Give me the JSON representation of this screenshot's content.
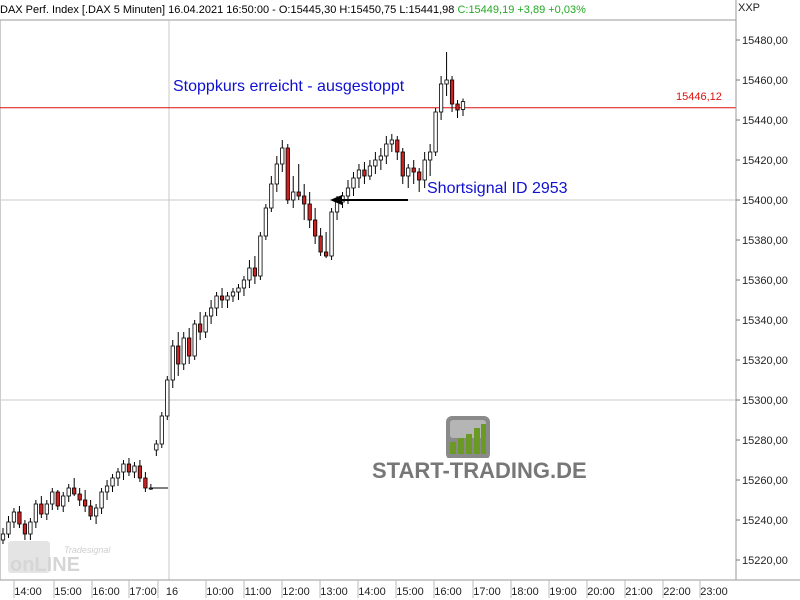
{
  "header": {
    "symbol": "DAX Perf. Index [.DAX  5 Minuten] 16.04.2021 16:50:00 - O:15445,30 H:15450,75 L:15441,98",
    "close": "C:15449,19 +3,89 +0,03%"
  },
  "currency": "XXP",
  "annotations": {
    "stop_text": "Stoppkurs erreicht - ausgestoppt",
    "signal_text": "Shortsignal ID 2953"
  },
  "price_tag": "15446,12",
  "logo": {
    "text": "START-TRADING.DE",
    "watermark": "Tradesignal online"
  },
  "colors": {
    "accent_line": "#dd1111",
    "annotation": "#1010d0",
    "candle_up": "#ffffff",
    "candle_down": "#cc2222",
    "grid": "#c8c8c8"
  },
  "chart_data": {
    "type": "candlestick",
    "ylim": [
      15210,
      15490
    ],
    "y_ticks": [
      "15480,00",
      "15460,00",
      "15440,00",
      "15420,00",
      "15400,00",
      "15380,00",
      "15360,00",
      "15340,00",
      "15320,00",
      "15300,00",
      "15280,00",
      "15260,00",
      "15240,00",
      "15220,00"
    ],
    "x_labels": [
      "14:00",
      "15:00",
      "16:00",
      "17:00",
      "16",
      "10:00",
      "11:00",
      "12:00",
      "13:00",
      "14:00",
      "15:00",
      "16:00",
      "17:00",
      "18:00",
      "19:00",
      "20:00",
      "21:00",
      "22:00",
      "23:00"
    ],
    "hlines": {
      "stop_level": 15446.12,
      "signal_level": 15400
    },
    "candles": [
      {
        "o": 15230,
        "h": 15236,
        "l": 15228,
        "c": 15233
      },
      {
        "o": 15233,
        "h": 15242,
        "l": 15231,
        "c": 15239
      },
      {
        "o": 15239,
        "h": 15246,
        "l": 15236,
        "c": 15244
      },
      {
        "o": 15244,
        "h": 15247,
        "l": 15236,
        "c": 15238
      },
      {
        "o": 15238,
        "h": 15240,
        "l": 15230,
        "c": 15233
      },
      {
        "o": 15233,
        "h": 15241,
        "l": 15230,
        "c": 15239
      },
      {
        "o": 15239,
        "h": 15250,
        "l": 15236,
        "c": 15248
      },
      {
        "o": 15248,
        "h": 15252,
        "l": 15241,
        "c": 15243
      },
      {
        "o": 15243,
        "h": 15250,
        "l": 15240,
        "c": 15248
      },
      {
        "o": 15248,
        "h": 15256,
        "l": 15245,
        "c": 15254
      },
      {
        "o": 15254,
        "h": 15255,
        "l": 15245,
        "c": 15247
      },
      {
        "o": 15247,
        "h": 15254,
        "l": 15244,
        "c": 15252
      },
      {
        "o": 15252,
        "h": 15258,
        "l": 15249,
        "c": 15256
      },
      {
        "o": 15256,
        "h": 15261,
        "l": 15252,
        "c": 15253
      },
      {
        "o": 15253,
        "h": 15256,
        "l": 15247,
        "c": 15250
      },
      {
        "o": 15250,
        "h": 15255,
        "l": 15244,
        "c": 15247
      },
      {
        "o": 15247,
        "h": 15250,
        "l": 15240,
        "c": 15242
      },
      {
        "o": 15242,
        "h": 15248,
        "l": 15238,
        "c": 15246
      },
      {
        "o": 15246,
        "h": 15256,
        "l": 15243,
        "c": 15254
      },
      {
        "o": 15254,
        "h": 15260,
        "l": 15250,
        "c": 15257
      },
      {
        "o": 15257,
        "h": 15263,
        "l": 15254,
        "c": 15261
      },
      {
        "o": 15261,
        "h": 15266,
        "l": 15257,
        "c": 15264
      },
      {
        "o": 15264,
        "h": 15270,
        "l": 15260,
        "c": 15268
      },
      {
        "o": 15268,
        "h": 15271,
        "l": 15262,
        "c": 15264
      },
      {
        "o": 15264,
        "h": 15269,
        "l": 15261,
        "c": 15267
      },
      {
        "o": 15267,
        "h": 15270,
        "l": 15259,
        "c": 15261
      },
      {
        "o": 15261,
        "h": 15264,
        "l": 15254,
        "c": 15256
      },
      {
        "o": 15256,
        "h": 15258,
        "l": 15255,
        "c": 15256
      },
      {
        "o": 15275,
        "h": 15280,
        "l": 15272,
        "c": 15278
      },
      {
        "o": 15278,
        "h": 15294,
        "l": 15276,
        "c": 15292
      },
      {
        "o": 15292,
        "h": 15312,
        "l": 15290,
        "c": 15310
      },
      {
        "o": 15310,
        "h": 15330,
        "l": 15306,
        "c": 15327
      },
      {
        "o": 15327,
        "h": 15334,
        "l": 15312,
        "c": 15318
      },
      {
        "o": 15318,
        "h": 15334,
        "l": 15315,
        "c": 15331
      },
      {
        "o": 15331,
        "h": 15336,
        "l": 15318,
        "c": 15322
      },
      {
        "o": 15322,
        "h": 15340,
        "l": 15320,
        "c": 15338
      },
      {
        "o": 15338,
        "h": 15344,
        "l": 15330,
        "c": 15334
      },
      {
        "o": 15334,
        "h": 15344,
        "l": 15331,
        "c": 15342
      },
      {
        "o": 15342,
        "h": 15350,
        "l": 15338,
        "c": 15346
      },
      {
        "o": 15346,
        "h": 15354,
        "l": 15342,
        "c": 15352
      },
      {
        "o": 15352,
        "h": 15356,
        "l": 15346,
        "c": 15350
      },
      {
        "o": 15350,
        "h": 15354,
        "l": 15346,
        "c": 15352
      },
      {
        "o": 15352,
        "h": 15356,
        "l": 15349,
        "c": 15354
      },
      {
        "o": 15354,
        "h": 15358,
        "l": 15350,
        "c": 15356
      },
      {
        "o": 15356,
        "h": 15362,
        "l": 15352,
        "c": 15360
      },
      {
        "o": 15360,
        "h": 15370,
        "l": 15356,
        "c": 15366
      },
      {
        "o": 15366,
        "h": 15372,
        "l": 15358,
        "c": 15362
      },
      {
        "o": 15362,
        "h": 15384,
        "l": 15360,
        "c": 15382
      },
      {
        "o": 15382,
        "h": 15398,
        "l": 15380,
        "c": 15396
      },
      {
        "o": 15396,
        "h": 15412,
        "l": 15394,
        "c": 15408
      },
      {
        "o": 15408,
        "h": 15422,
        "l": 15404,
        "c": 15418
      },
      {
        "o": 15418,
        "h": 15430,
        "l": 15414,
        "c": 15426
      },
      {
        "o": 15426,
        "h": 15428,
        "l": 15398,
        "c": 15400
      },
      {
        "o": 15400,
        "h": 15412,
        "l": 15396,
        "c": 15404
      },
      {
        "o": 15404,
        "h": 15418,
        "l": 15400,
        "c": 15402
      },
      {
        "o": 15402,
        "h": 15408,
        "l": 15390,
        "c": 15398
      },
      {
        "o": 15398,
        "h": 15404,
        "l": 15386,
        "c": 15390
      },
      {
        "o": 15390,
        "h": 15396,
        "l": 15378,
        "c": 15382
      },
      {
        "o": 15382,
        "h": 15386,
        "l": 15372,
        "c": 15374
      },
      {
        "o": 15374,
        "h": 15384,
        "l": 15371,
        "c": 15372
      },
      {
        "o": 15372,
        "h": 15396,
        "l": 15370,
        "c": 15394
      },
      {
        "o": 15394,
        "h": 15402,
        "l": 15390,
        "c": 15399
      },
      {
        "o": 15399,
        "h": 15404,
        "l": 15396,
        "c": 15402
      },
      {
        "o": 15402,
        "h": 15410,
        "l": 15398,
        "c": 15406
      },
      {
        "o": 15406,
        "h": 15414,
        "l": 15402,
        "c": 15411
      },
      {
        "o": 15411,
        "h": 15418,
        "l": 15406,
        "c": 15415
      },
      {
        "o": 15415,
        "h": 15419,
        "l": 15408,
        "c": 15412
      },
      {
        "o": 15412,
        "h": 15420,
        "l": 15410,
        "c": 15417
      },
      {
        "o": 15417,
        "h": 15424,
        "l": 15413,
        "c": 15420
      },
      {
        "o": 15420,
        "h": 15426,
        "l": 15415,
        "c": 15422
      },
      {
        "o": 15422,
        "h": 15432,
        "l": 15418,
        "c": 15428
      },
      {
        "o": 15428,
        "h": 15433,
        "l": 15424,
        "c": 15430
      },
      {
        "o": 15430,
        "h": 15432,
        "l": 15420,
        "c": 15424
      },
      {
        "o": 15424,
        "h": 15426,
        "l": 15408,
        "c": 15412
      },
      {
        "o": 15412,
        "h": 15418,
        "l": 15406,
        "c": 15416
      },
      {
        "o": 15416,
        "h": 15420,
        "l": 15408,
        "c": 15414
      },
      {
        "o": 15414,
        "h": 15416,
        "l": 15404,
        "c": 15410
      },
      {
        "o": 15410,
        "h": 15424,
        "l": 15406,
        "c": 15420
      },
      {
        "o": 15420,
        "h": 15428,
        "l": 15412,
        "c": 15424
      },
      {
        "o": 15424,
        "h": 15446,
        "l": 15422,
        "c": 15444
      },
      {
        "o": 15444,
        "h": 15462,
        "l": 15440,
        "c": 15458
      },
      {
        "o": 15458,
        "h": 15474,
        "l": 15452,
        "c": 15460
      },
      {
        "o": 15460,
        "h": 15462,
        "l": 15444,
        "c": 15448
      },
      {
        "o": 15448,
        "h": 15450,
        "l": 15441,
        "c": 15445
      },
      {
        "o": 15445.3,
        "h": 15450.75,
        "l": 15441.98,
        "c": 15449.19
      }
    ]
  }
}
